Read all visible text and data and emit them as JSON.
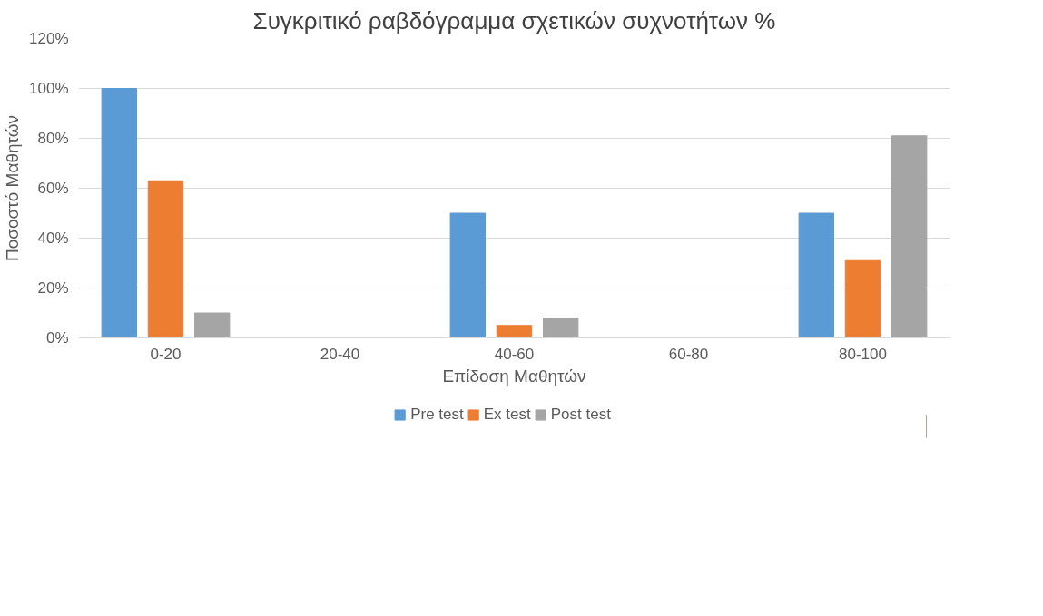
{
  "chart_data": {
    "type": "bar",
    "title": "Συγκριτικό ραβδόγραμμα σχετικών συχνοτήτων %",
    "xlabel": "Επίδοση Μαθητών",
    "ylabel": "Ποσοστό Μαθητών",
    "categories": [
      "0-20",
      "20-40",
      "40-60",
      "60-80",
      "80-100"
    ],
    "series": [
      {
        "name": "Pre test",
        "color": "#5b9bd5",
        "values": [
          100,
          0,
          50,
          0,
          50
        ]
      },
      {
        "name": "Ex test",
        "color": "#ed7d31",
        "values": [
          63,
          0,
          5,
          0,
          31
        ]
      },
      {
        "name": "Post test",
        "color": "#a5a5a5",
        "values": [
          10,
          0,
          8,
          0,
          81
        ]
      }
    ],
    "ylim": [
      0,
      120
    ],
    "yticks": [
      {
        "value": 0,
        "label": "0%"
      },
      {
        "value": 20,
        "label": "20%"
      },
      {
        "value": 40,
        "label": "40%"
      },
      {
        "value": 60,
        "label": "60%"
      },
      {
        "value": 80,
        "label": "80%"
      },
      {
        "value": 100,
        "label": "100%"
      },
      {
        "value": 120,
        "label": "120%"
      }
    ],
    "grid": "y",
    "legend": "bottom"
  }
}
